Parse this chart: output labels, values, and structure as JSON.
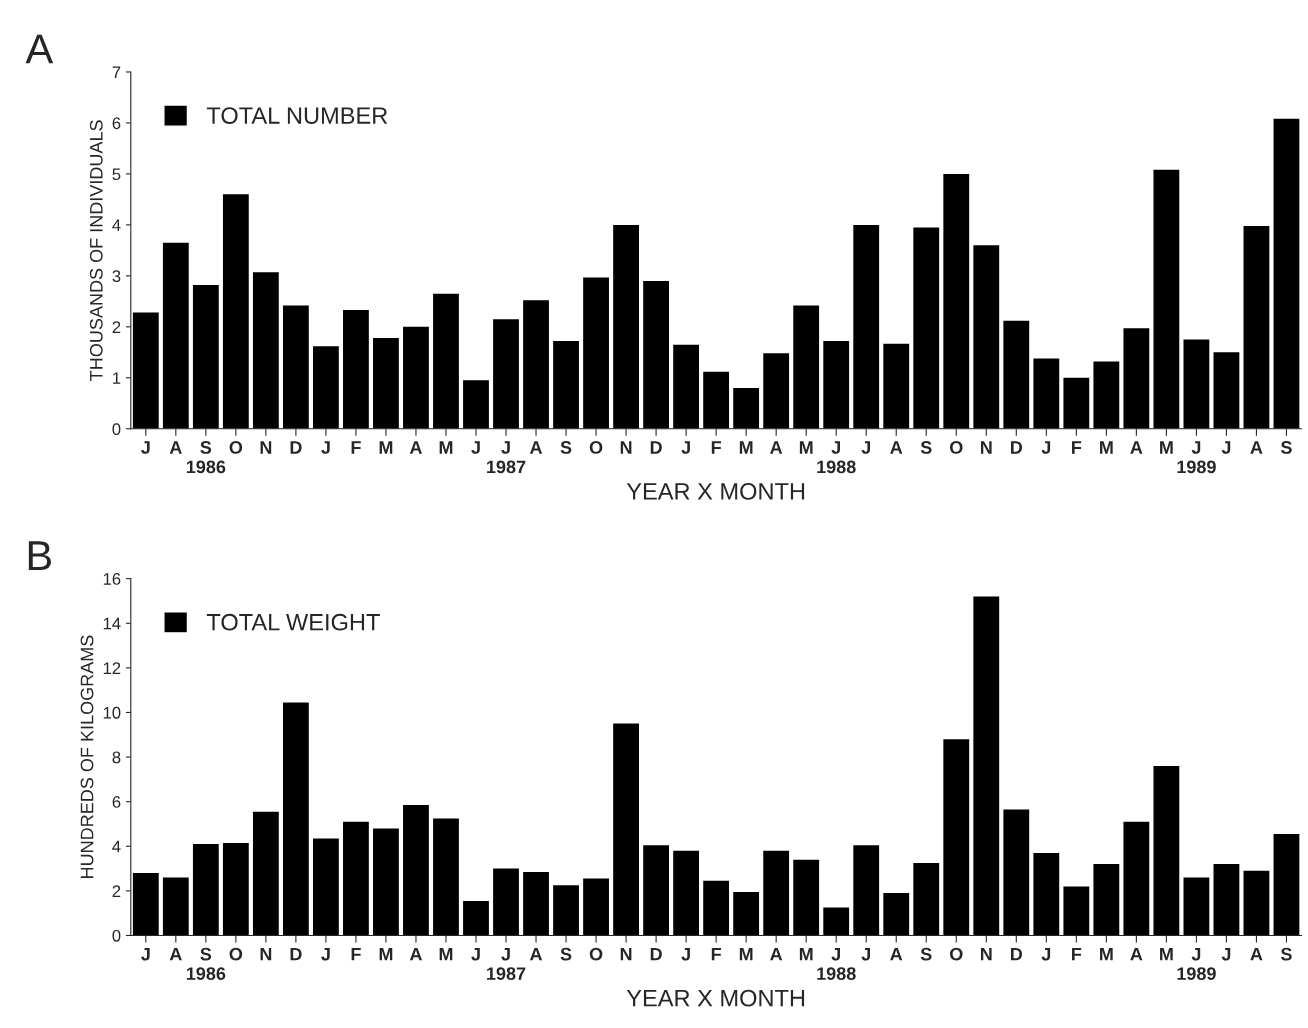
{
  "chart_data": [
    {
      "type": "bar",
      "title": "A",
      "xlabel": "YEAR X MONTH",
      "ylabel": "THOUSANDS OF INDIVIDUALS",
      "categories": [
        "J",
        "A",
        "S\n1986",
        "O",
        "N",
        "D",
        "J",
        "F",
        "M",
        "A",
        "M",
        "J",
        "J\n1987",
        "A",
        "S",
        "O",
        "N",
        "D",
        "J",
        "F",
        "M",
        "A",
        "M",
        "J\n1988",
        "J",
        "A",
        "S",
        "O",
        "N",
        "D",
        "J",
        "F",
        "M",
        "A",
        "M",
        "J\n1989",
        "J",
        "A",
        "S"
      ],
      "series": [
        {
          "name": "TOTAL NUMBER",
          "color": "#000000",
          "values": [
            2.28,
            3.65,
            2.82,
            4.6,
            3.07,
            2.42,
            1.62,
            2.33,
            1.78,
            2.0,
            2.65,
            0.95,
            2.15,
            2.52,
            1.72,
            2.97,
            4.0,
            2.9,
            1.65,
            1.12,
            0.8,
            1.48,
            2.42,
            1.72,
            4.0,
            1.67,
            3.95,
            5.0,
            3.6,
            2.12,
            1.38,
            1.0,
            1.32,
            1.97,
            5.08,
            1.75,
            1.5,
            3.98,
            6.08
          ]
        }
      ],
      "ylim": [
        0,
        7
      ],
      "yticks": [
        0,
        1,
        2,
        3,
        4,
        5,
        6,
        7
      ],
      "legend": "top left",
      "grid": false
    },
    {
      "type": "bar",
      "title": "B",
      "xlabel": "YEAR X MONTH",
      "ylabel": "HUNDREDS OF KILOGRAMS",
      "categories": [
        "J",
        "A",
        "S\n1986",
        "O",
        "N",
        "D",
        "J",
        "F",
        "M",
        "A",
        "M",
        "J",
        "J\n1987",
        "A",
        "S",
        "O",
        "N",
        "D",
        "J",
        "F",
        "M",
        "A",
        "M",
        "J\n1988",
        "J",
        "A",
        "S",
        "O",
        "N",
        "D",
        "J",
        "F",
        "M",
        "A",
        "M",
        "J\n1989",
        "J",
        "A",
        "S"
      ],
      "series": [
        {
          "name": "TOTAL WEIGHT",
          "color": "#000000",
          "values": [
            2.8,
            2.6,
            4.1,
            4.15,
            5.55,
            10.45,
            4.35,
            5.1,
            4.8,
            5.85,
            5.25,
            1.55,
            3.0,
            2.85,
            2.25,
            2.55,
            9.5,
            4.05,
            3.8,
            2.45,
            1.95,
            3.8,
            3.4,
            1.25,
            4.05,
            1.9,
            3.25,
            8.8,
            15.2,
            5.65,
            3.7,
            2.2,
            3.2,
            5.1,
            7.6,
            2.6,
            3.2,
            2.9,
            4.55
          ]
        }
      ],
      "ylim": [
        0,
        16
      ],
      "yticks": [
        0,
        2,
        4,
        6,
        8,
        10,
        12,
        14,
        16
      ],
      "legend": "top left",
      "grid": false
    }
  ]
}
